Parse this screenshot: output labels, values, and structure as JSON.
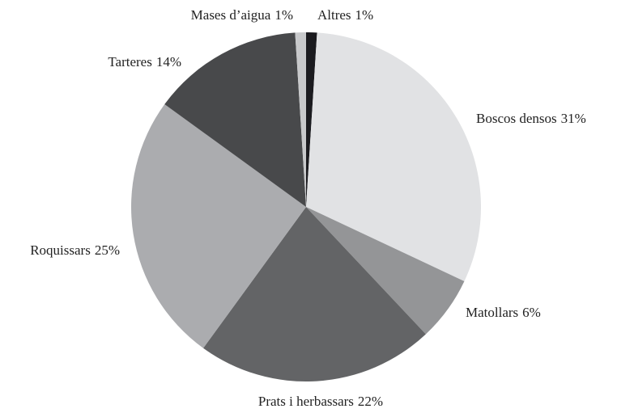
{
  "chart_data": {
    "type": "pie",
    "categories": [
      "Altres",
      "Boscos densos",
      "Matollars",
      "Prats i herbassars",
      "Roquissars",
      "Tarteres",
      "Mases d’aigua"
    ],
    "values": [
      1,
      31,
      6,
      22,
      25,
      14,
      1
    ],
    "value_labels": [
      "1%",
      "31%",
      "6%",
      "22%",
      "25%",
      "14%",
      "1%"
    ],
    "colors": [
      "#1b1b1f",
      "#e1e2e4",
      "#949597",
      "#636466",
      "#abacaf",
      "#48494b",
      "#c8c9cb"
    ]
  }
}
